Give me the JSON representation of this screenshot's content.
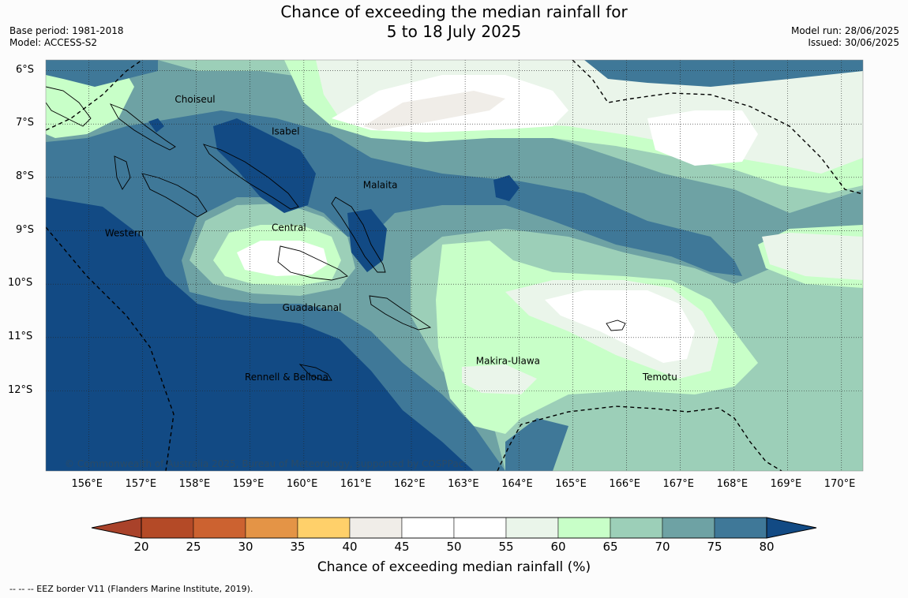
{
  "header": {
    "title_line1": "Chance of exceeding the median rainfall for",
    "title_line2": "5 to 18 July 2025",
    "base_period": "Base period: 1981-2018",
    "model": "Model: ACCESS-S2",
    "model_run": "Model run: 28/06/2025",
    "issued": "Issued: 30/06/2025"
  },
  "map": {
    "lon_range": [
      155.2,
      170.4
    ],
    "lat_range": [
      -13.5,
      -5.8
    ],
    "lon_ticks": [
      "156°E",
      "157°E",
      "158°E",
      "159°E",
      "160°E",
      "161°E",
      "162°E",
      "163°E",
      "164°E",
      "165°E",
      "166°E",
      "167°E",
      "168°E",
      "169°E",
      "170°E"
    ],
    "lat_ticks": [
      "6°S",
      "7°S",
      "8°S",
      "9°S",
      "10°S",
      "11°S",
      "12°S"
    ],
    "regions": [
      {
        "name": "Choiseul",
        "lon": 157.6,
        "lat": -6.6
      },
      {
        "name": "Isabel",
        "lon": 159.4,
        "lat": -7.2
      },
      {
        "name": "Malaita",
        "lon": 161.1,
        "lat": -8.2
      },
      {
        "name": "Central",
        "lon": 159.4,
        "lat": -9.0
      },
      {
        "name": "Western",
        "lon": 156.3,
        "lat": -9.1
      },
      {
        "name": "Guadalcanal",
        "lon": 159.6,
        "lat": -10.5
      },
      {
        "name": "Makira-Ulawa",
        "lon": 163.2,
        "lat": -11.5
      },
      {
        "name": "Rennell & Bellona",
        "lon": 158.9,
        "lat": -11.8
      },
      {
        "name": "Temotu",
        "lon": 166.3,
        "lat": -11.8
      }
    ],
    "copyright": "© Commonwealth of Australia 2025, Bureau of Meteorology, supported by COSPPac"
  },
  "colorbar": {
    "title": "Chance of exceeding median rainfall (%)",
    "ticks": [
      "20",
      "25",
      "30",
      "35",
      "40",
      "45",
      "50",
      "55",
      "60",
      "65",
      "70",
      "75",
      "80"
    ],
    "colors": [
      "#a9422a",
      "#b44a27",
      "#cc6230",
      "#e49446",
      "#ffd06a",
      "#f0ede8",
      "#ffffff",
      "#ffffff",
      "#eaf5ea",
      "#c8ffc8",
      "#9ccfb8",
      "#6ea2a4",
      "#3f7898",
      "#124a84"
    ]
  },
  "footer": "-- -- -- EEZ border V11 (Flanders Marine Institute, 2019)."
}
